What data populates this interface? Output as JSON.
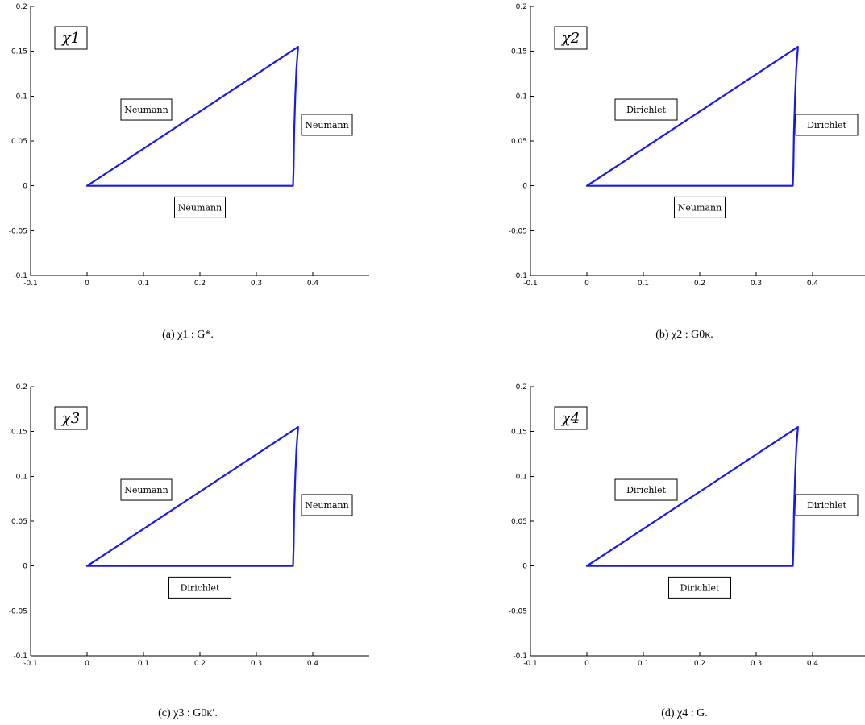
{
  "panels": [
    {
      "chi_label": "χ1",
      "caption": "(a)  χ1 : G*.",
      "chart_data": {
        "type": "line",
        "xlim": [
          -0.1,
          0.5
        ],
        "ylim": [
          -0.1,
          0.2
        ],
        "xticks": [
          "-0.1",
          "0",
          "0.1",
          "0.2",
          "0.3",
          "0.4"
        ],
        "yticks": [
          "-0.1",
          "-0.05",
          "0",
          "0.05",
          "0.1",
          "0.15",
          "0.2"
        ],
        "boundary_points": [
          [
            0,
            0
          ],
          [
            0.365,
            0
          ],
          [
            0.366,
            0.02
          ],
          [
            0.367,
            0.06
          ],
          [
            0.369,
            0.1
          ],
          [
            0.371,
            0.13
          ],
          [
            0.374,
            0.155
          ],
          [
            0,
            0
          ]
        ],
        "annotations": [
          {
            "text": "Neumann",
            "x": 0.105,
            "y": 0.085
          },
          {
            "text": "Neumann",
            "x": 0.425,
            "y": 0.068
          },
          {
            "text": "Neumann",
            "x": 0.2,
            "y": -0.024
          }
        ],
        "grid": false
      }
    },
    {
      "chi_label": "χ2",
      "caption": "(b)  χ2 : G0κ.",
      "chart_data": {
        "type": "line",
        "xlim": [
          -0.1,
          0.5
        ],
        "ylim": [
          -0.1,
          0.2
        ],
        "xticks": [
          "-0.1",
          "0",
          "0.1",
          "0.2",
          "0.3",
          "0.4"
        ],
        "yticks": [
          "-0.1",
          "-0.05",
          "0",
          "0.05",
          "0.1",
          "0.15",
          "0.2"
        ],
        "boundary_points": [
          [
            0,
            0
          ],
          [
            0.365,
            0
          ],
          [
            0.366,
            0.02
          ],
          [
            0.367,
            0.06
          ],
          [
            0.369,
            0.1
          ],
          [
            0.371,
            0.13
          ],
          [
            0.374,
            0.155
          ],
          [
            0,
            0
          ]
        ],
        "annotations": [
          {
            "text": "Dirichlet",
            "x": 0.105,
            "y": 0.085
          },
          {
            "text": "Dirichlet",
            "x": 0.425,
            "y": 0.068
          },
          {
            "text": "Neumann",
            "x": 0.2,
            "y": -0.024
          }
        ],
        "grid": false
      }
    },
    {
      "chi_label": "χ3",
      "caption": "(c)  χ3 : G0κ′.",
      "chart_data": {
        "type": "line",
        "xlim": [
          -0.1,
          0.5
        ],
        "ylim": [
          -0.1,
          0.2
        ],
        "xticks": [
          "-0.1",
          "0",
          "0.1",
          "0.2",
          "0.3",
          "0.4"
        ],
        "yticks": [
          "-0.1",
          "-0.05",
          "0",
          "0.05",
          "0.1",
          "0.15",
          "0.2"
        ],
        "boundary_points": [
          [
            0,
            0
          ],
          [
            0.365,
            0
          ],
          [
            0.366,
            0.02
          ],
          [
            0.367,
            0.06
          ],
          [
            0.369,
            0.1
          ],
          [
            0.371,
            0.13
          ],
          [
            0.374,
            0.155
          ],
          [
            0,
            0
          ]
        ],
        "annotations": [
          {
            "text": "Neumann",
            "x": 0.105,
            "y": 0.085
          },
          {
            "text": "Neumann",
            "x": 0.425,
            "y": 0.068
          },
          {
            "text": "Dirichlet",
            "x": 0.2,
            "y": -0.024
          }
        ],
        "grid": false
      }
    },
    {
      "chi_label": "χ4",
      "caption": "(d)  χ4 : G.",
      "chart_data": {
        "type": "line",
        "xlim": [
          -0.1,
          0.5
        ],
        "ylim": [
          -0.1,
          0.2
        ],
        "xticks": [
          "-0.1",
          "0",
          "0.1",
          "0.2",
          "0.3",
          "0.4"
        ],
        "yticks": [
          "-0.1",
          "-0.05",
          "0",
          "0.05",
          "0.1",
          "0.15",
          "0.2"
        ],
        "boundary_points": [
          [
            0,
            0
          ],
          [
            0.365,
            0
          ],
          [
            0.366,
            0.02
          ],
          [
            0.367,
            0.06
          ],
          [
            0.369,
            0.1
          ],
          [
            0.371,
            0.13
          ],
          [
            0.374,
            0.155
          ],
          [
            0,
            0
          ]
        ],
        "annotations": [
          {
            "text": "Dirichlet",
            "x": 0.105,
            "y": 0.085
          },
          {
            "text": "Dirichlet",
            "x": 0.425,
            "y": 0.068
          },
          {
            "text": "Dirichlet",
            "x": 0.2,
            "y": -0.024
          }
        ],
        "grid": false
      }
    }
  ],
  "colors": {
    "boundary": "#1a1ae6"
  }
}
